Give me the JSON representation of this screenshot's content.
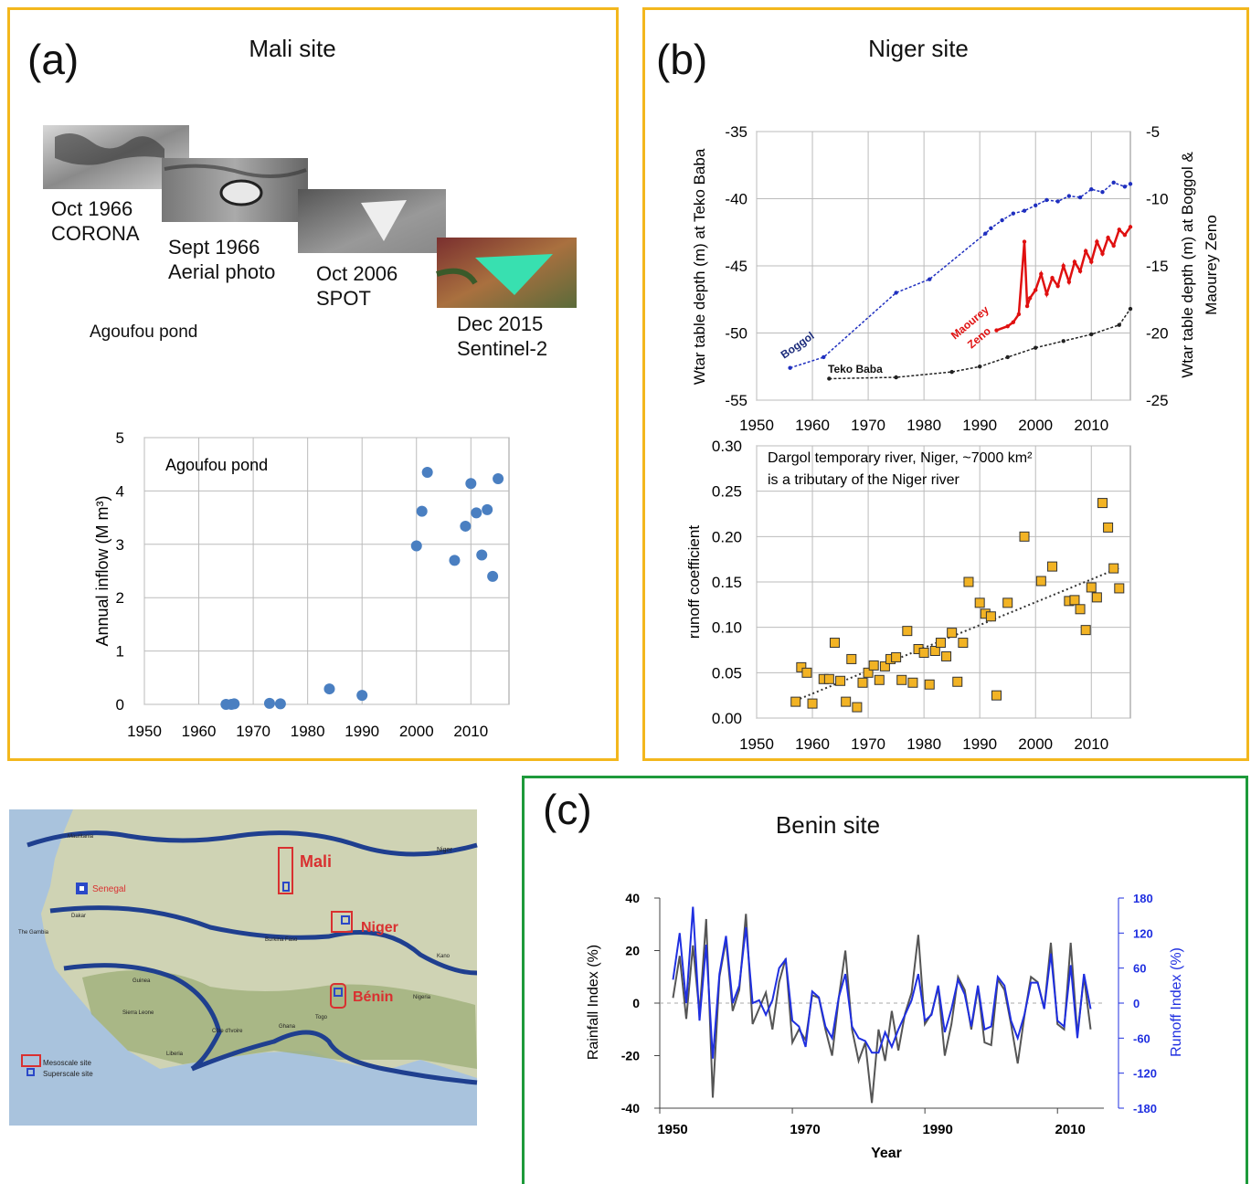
{
  "panels": {
    "a": {
      "label": "(a)",
      "title": "Mali site",
      "images": [
        {
          "caption_line1": "Oct 1966",
          "caption_line2": "CORONA"
        },
        {
          "caption_line1": "Sept 1966",
          "caption_line2": "Aerial photo"
        },
        {
          "caption_line1": "Oct 2006",
          "caption_line2": "SPOT"
        },
        {
          "caption_line1": "Dec 2015",
          "caption_line2": "Sentinel-2"
        }
      ],
      "pond_label": "Agoufou pond"
    },
    "b": {
      "label": "(b)",
      "title": "Niger site"
    },
    "c": {
      "label": "(c)",
      "title": "Benin site"
    }
  },
  "map": {
    "labels": {
      "mali": "Mali",
      "niger_site": "Niger",
      "benin": "Bénin",
      "senegal": "Senegal",
      "niger_country": "Niger",
      "mauritania": "Mauritania",
      "burkina": "Burkina Faso",
      "nigeria": "Nigeria",
      "ghana": "Ghana",
      "guinea": "Guinea",
      "sierra": "Sierra Leone",
      "liberia": "Liberia",
      "cote": "Côte d'Ivoire",
      "togo": "Togo",
      "kano": "Kano",
      "gambia": "The Gambia",
      "dakar": "Dakar"
    },
    "legend": {
      "mesoscale": "Mesoscale site",
      "superscale": "Superscale site"
    },
    "colors": {
      "ocean": "#a9c3dd",
      "land": "#cfd3b4",
      "forest": "#9fb07a",
      "bands": "#1f3f8f",
      "site": "#d93030"
    }
  },
  "chart_data": [
    {
      "id": "mali-inflow",
      "type": "scatter",
      "title": "",
      "annotation": "Agoufou pond",
      "xlabel": "",
      "ylabel": "Annual inflow (M m³)",
      "xlim": [
        1950,
        2017
      ],
      "ylim": [
        0,
        5
      ],
      "xticks": [
        1950,
        1960,
        1970,
        1980,
        1990,
        2000,
        2010
      ],
      "yticks": [
        0,
        1,
        2,
        3,
        4,
        5
      ],
      "grid": true,
      "color": "#4a7fc1",
      "x": [
        1965,
        1966,
        1966.5,
        1973,
        1975,
        1984,
        1990,
        2000,
        2001,
        2002,
        2007,
        2009,
        2010,
        2011,
        2012,
        2013,
        2014,
        2015
      ],
      "y": [
        0.0,
        0.0,
        0.01,
        0.02,
        0.01,
        0.29,
        0.17,
        2.97,
        3.62,
        4.35,
        2.7,
        3.34,
        4.14,
        3.59,
        2.8,
        3.65,
        2.4,
        4.23
      ]
    },
    {
      "id": "niger-watertable",
      "type": "line",
      "title": "",
      "xlabel": "",
      "ylabel": "Wtar table depth (m) at Teko Baba",
      "ylabel_right": "Wtar table depth (m) at Boggol & Maourey Zeno",
      "xlim": [
        1950,
        2017
      ],
      "ylim": [
        -55,
        -35
      ],
      "ylim_right": [
        -25,
        -5
      ],
      "xticks": [
        1950,
        1960,
        1970,
        1980,
        1990,
        2000,
        2010
      ],
      "yticks": [
        -55,
        -50,
        -45,
        -40,
        -35
      ],
      "yticks_right": [
        -25,
        -20,
        -15,
        -10,
        -5
      ],
      "grid": true,
      "series": [
        {
          "name": "Boggol",
          "axis": "right",
          "color": "#1f2fbf",
          "x": [
            1956,
            1962,
            1975,
            1981,
            1991,
            1992,
            1994,
            1996,
            1998,
            2000,
            2002,
            2004,
            2006,
            2008,
            2010,
            2012,
            2014,
            2016,
            2017
          ],
          "y": [
            -22.6,
            -21.8,
            -17.0,
            -16.0,
            -12.6,
            -12.2,
            -11.6,
            -11.1,
            -10.9,
            -10.5,
            -10.1,
            -10.2,
            -9.8,
            -9.9,
            -9.3,
            -9.5,
            -8.8,
            -9.1,
            -8.9
          ]
        },
        {
          "name": "Maourey Zeno",
          "axis": "right",
          "color": "#e01010",
          "x": [
            1993,
            1995,
            1996,
            1997,
            1998,
            1998.5,
            1999,
            2000,
            2001,
            2002,
            2003,
            2004,
            2005,
            2006,
            2007,
            2008,
            2009,
            2010,
            2011,
            2012,
            2013,
            2014,
            2015,
            2016,
            2017
          ],
          "y": [
            -19.8,
            -19.5,
            -19.2,
            -18.6,
            -13.2,
            -18.0,
            -17.4,
            -16.8,
            -15.6,
            -17.1,
            -15.9,
            -16.5,
            -15.0,
            -16.2,
            -14.7,
            -15.4,
            -13.9,
            -14.7,
            -13.2,
            -14.1,
            -12.9,
            -13.5,
            -12.3,
            -12.7,
            -12.1
          ]
        },
        {
          "name": "Teko Baba",
          "axis": "left",
          "color": "#222222",
          "x": [
            1963,
            1975,
            1985,
            1990,
            1995,
            2000,
            2005,
            2010,
            2015,
            2017
          ],
          "y": [
            -53.4,
            -53.3,
            -52.9,
            -52.5,
            -51.8,
            -51.1,
            -50.6,
            -50.1,
            -49.4,
            -48.2
          ]
        }
      ]
    },
    {
      "id": "niger-runoff",
      "type": "scatter",
      "title": "",
      "annotation": "Dargol temporary river, Niger, ~7000 km²",
      "annotation2": "is a tributary of the Niger river",
      "xlabel": "",
      "ylabel": "runoff coefficient",
      "xlim": [
        1950,
        2017
      ],
      "ylim": [
        0,
        0.3
      ],
      "xticks": [
        1950,
        1960,
        1970,
        1980,
        1990,
        2000,
        2010
      ],
      "yticks": [
        0.0,
        0.05,
        0.1,
        0.15,
        0.2,
        0.25,
        0.3
      ],
      "ytick_labels": [
        "0.00",
        "0.05",
        "0.10",
        "0.15",
        "0.20",
        "0.25",
        "0.30"
      ],
      "grid": true,
      "trend": true,
      "color": "#f2b324",
      "x": [
        1957,
        1958,
        1959,
        1960,
        1962,
        1963,
        1964,
        1965,
        1966,
        1967,
        1968,
        1969,
        1970,
        1971,
        1972,
        1973,
        1974,
        1975,
        1976,
        1977,
        1978,
        1979,
        1980,
        1981,
        1982,
        1983,
        1984,
        1985,
        1986,
        1987,
        1988,
        1990,
        1991,
        1992,
        1993,
        1995,
        1998,
        2001,
        2003,
        2006,
        2007,
        2008,
        2009,
        2010,
        2011,
        2012,
        2013,
        2014,
        2015
      ],
      "y": [
        0.018,
        0.056,
        0.05,
        0.016,
        0.043,
        0.043,
        0.083,
        0.041,
        0.018,
        0.065,
        0.012,
        0.039,
        0.05,
        0.058,
        0.042,
        0.057,
        0.065,
        0.067,
        0.042,
        0.096,
        0.039,
        0.076,
        0.072,
        0.037,
        0.074,
        0.083,
        0.068,
        0.094,
        0.04,
        0.083,
        0.15,
        0.127,
        0.115,
        0.112,
        0.025,
        0.127,
        0.2,
        0.151,
        0.167,
        0.129,
        0.13,
        0.12,
        0.097,
        0.144,
        0.133,
        0.237,
        0.21,
        0.165,
        0.143
      ]
    },
    {
      "id": "benin-indices",
      "type": "line",
      "title": "",
      "xlabel": "Year",
      "ylabel": "Rainfall Index (%)",
      "ylabel_right": "Runoff Index (%)",
      "xlim": [
        1950,
        2017
      ],
      "ylim": [
        -40,
        40
      ],
      "ylim_right": [
        -180,
        180
      ],
      "xticks": [
        1950,
        1970,
        1990,
        2010
      ],
      "yticks": [
        -40,
        -20,
        0,
        20,
        40
      ],
      "yticks_right": [
        -180,
        -120,
        -60,
        0,
        60,
        120,
        180
      ],
      "grid": false,
      "series": [
        {
          "name": "Rainfall Index",
          "axis": "left",
          "color": "#555555",
          "x": [
            1952,
            1953,
            1954,
            1955,
            1956,
            1957,
            1958,
            1959,
            1960,
            1961,
            1962,
            1963,
            1964,
            1965,
            1966,
            1967,
            1968,
            1969,
            1970,
            1971,
            1972,
            1973,
            1974,
            1975,
            1976,
            1977,
            1978,
            1979,
            1980,
            1981,
            1982,
            1983,
            1984,
            1985,
            1986,
            1987,
            1988,
            1989,
            1990,
            1991,
            1992,
            1993,
            1994,
            1995,
            1996,
            1997,
            1998,
            1999,
            2000,
            2001,
            2002,
            2003,
            2004,
            2005,
            2006,
            2007,
            2008,
            2009,
            2010,
            2011,
            2012,
            2013,
            2014,
            2015
          ],
          "y": [
            2,
            18,
            -6,
            22,
            -4,
            32,
            -36,
            10,
            24,
            -3,
            5,
            34,
            -8,
            -2,
            4,
            -10,
            8,
            17,
            -15,
            -10,
            -14,
            3,
            2,
            -10,
            -20,
            2,
            20,
            -10,
            -22,
            -15,
            -38,
            -10,
            -22,
            -3,
            -18,
            -4,
            4,
            26,
            -8,
            -4,
            6,
            -20,
            -8,
            10,
            5,
            -10,
            6,
            -15,
            -16,
            9,
            5,
            -8,
            -23,
            -5,
            10,
            8,
            -2,
            23,
            -8,
            -10,
            23,
            -12,
            10,
            -10
          ]
        },
        {
          "name": "Runoff Index",
          "axis": "right",
          "color": "#1f2fe0",
          "x": [
            1952,
            1953,
            1954,
            1955,
            1956,
            1957,
            1958,
            1959,
            1960,
            1961,
            1962,
            1963,
            1964,
            1965,
            1966,
            1967,
            1968,
            1969,
            1970,
            1971,
            1972,
            1973,
            1974,
            1975,
            1976,
            1977,
            1978,
            1979,
            1980,
            1981,
            1982,
            1983,
            1984,
            1985,
            1986,
            1987,
            1988,
            1989,
            1990,
            1991,
            1992,
            1993,
            1994,
            1995,
            1996,
            1997,
            1998,
            1999,
            2000,
            2001,
            2002,
            2003,
            2004,
            2005,
            2006,
            2007,
            2008,
            2009,
            2010,
            2011,
            2012,
            2013,
            2014,
            2015
          ],
          "y": [
            40,
            120,
            0,
            165,
            -30,
            100,
            -95,
            50,
            115,
            0,
            30,
            130,
            0,
            5,
            -20,
            5,
            60,
            75,
            -30,
            -40,
            -75,
            20,
            10,
            -40,
            -60,
            10,
            50,
            -40,
            -60,
            -65,
            -85,
            -85,
            -50,
            -75,
            -45,
            -20,
            5,
            50,
            -30,
            -20,
            30,
            -50,
            -10,
            40,
            15,
            -40,
            30,
            -45,
            -40,
            45,
            30,
            -30,
            -60,
            -20,
            35,
            35,
            -10,
            85,
            -30,
            -40,
            65,
            -60,
            50,
            -10
          ]
        }
      ]
    }
  ]
}
